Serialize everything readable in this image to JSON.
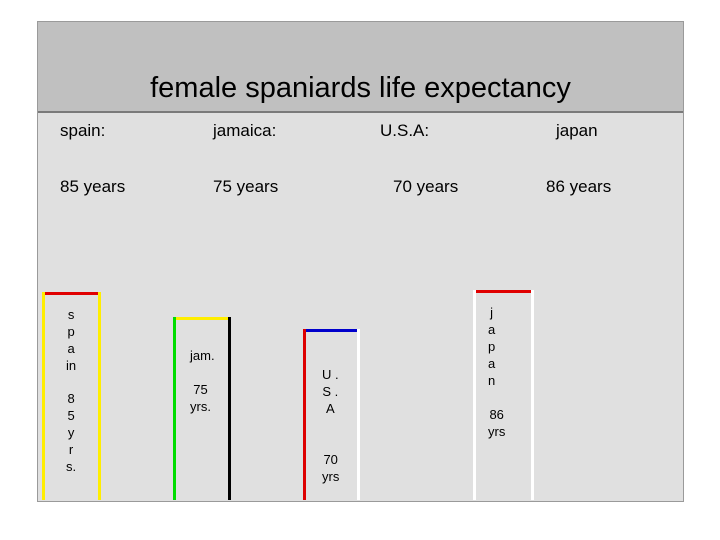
{
  "title": "female spaniards life expectancy",
  "headers": [
    {
      "country": "spain:",
      "value": "85 years"
    },
    {
      "country": "jamaica:",
      "value": "75 years"
    },
    {
      "country": "U.S.A:",
      "value": "70 years"
    },
    {
      "country": "japan",
      "value": "86 years"
    }
  ],
  "chart_data": {
    "type": "bar",
    "title": "female spaniards life expectancy",
    "categories": [
      "spain",
      "jamaica",
      "U.S.A",
      "japan"
    ],
    "values": [
      85,
      75,
      70,
      86
    ],
    "bar_labels": [
      {
        "name_lines": "s\np\na\nin",
        "value_lines": "8\n5\ny\nr\ns."
      },
      {
        "name_lines": "jam.",
        "value_lines": "75\nyrs."
      },
      {
        "name_lines": "U .\nS .\nA",
        "value_lines": "70\nyrs"
      },
      {
        "name_lines": "j\na\np\na\nn",
        "value_lines": "86\nyrs"
      }
    ],
    "bar_colors": [
      {
        "top": "#e00000",
        "left": "#ffee00",
        "right": "#ffee00"
      },
      {
        "top": "#ffee00",
        "left": "#00dd00",
        "right": "#000000"
      },
      {
        "top": "#0000cc",
        "left": "#dd0000",
        "right": "#ffffff"
      },
      {
        "top": "#e00000",
        "left": "#ffffff",
        "right": "#ffffff"
      }
    ]
  }
}
